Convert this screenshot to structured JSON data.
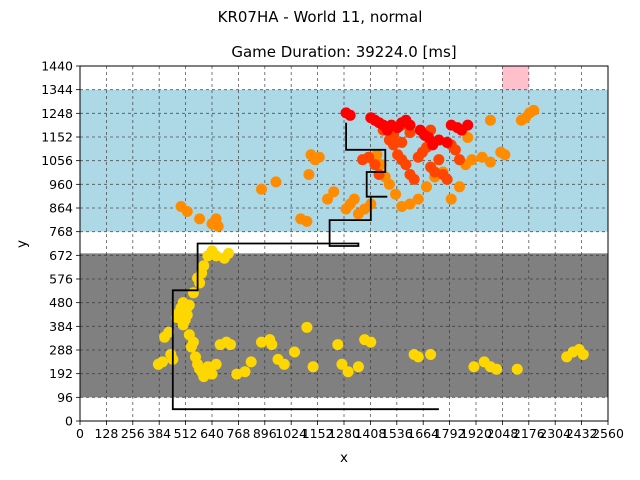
{
  "chart_data": {
    "type": "scatter",
    "suptitle": "KR07HA - World 11, normal",
    "title": "Game Duration: 39224.0 [ms]",
    "xlabel": "x",
    "ylabel": "y",
    "xlim": [
      0,
      2560
    ],
    "ylim": [
      0,
      1440
    ],
    "xticks": [
      0,
      128,
      256,
      384,
      512,
      640,
      768,
      896,
      1024,
      1152,
      1280,
      1408,
      1536,
      1664,
      1792,
      1920,
      2048,
      2176,
      2304,
      2432,
      2560
    ],
    "yticks": [
      0,
      96,
      192,
      288,
      384,
      480,
      576,
      672,
      768,
      864,
      960,
      1056,
      1152,
      1248,
      1344,
      1440
    ],
    "xtick_labels": [
      "0",
      "128",
      "256",
      "384",
      "512",
      "640",
      "768",
      "896",
      "1024",
      "1152",
      "1280",
      "1408",
      "1536",
      "1664",
      "1792",
      "1920",
      "2048",
      "2176",
      "2304",
      "2432",
      "2560"
    ],
    "ytick_labels": [
      "0",
      "96",
      "192",
      "288",
      "384",
      "480",
      "576",
      "672",
      "768",
      "864",
      "960",
      "1056",
      "1152",
      "1248",
      "1344",
      "1440"
    ],
    "grid": true,
    "regions": [
      {
        "name": "lower-zone",
        "color": "#808080",
        "x": [
          0,
          2560
        ],
        "y": [
          96,
          680
        ]
      },
      {
        "name": "upper-zone",
        "color": "#add8e6",
        "x": [
          0,
          2560
        ],
        "y": [
          768,
          1344
        ]
      },
      {
        "name": "goal-zone",
        "color": "#ffc0cb",
        "x": [
          2048,
          2176
        ],
        "y": [
          1344,
          1440
        ]
      }
    ],
    "path": [
      [
        1740,
        48
      ],
      [
        450,
        48
      ],
      [
        450,
        530
      ],
      [
        570,
        530
      ],
      [
        570,
        720
      ],
      [
        1350,
        720
      ],
      [
        1350,
        710
      ],
      [
        1210,
        710
      ],
      [
        1210,
        815
      ],
      [
        1410,
        815
      ],
      [
        1410,
        910
      ],
      [
        1490,
        910
      ],
      [
        1390,
        910
      ],
      [
        1390,
        1010
      ],
      [
        1480,
        1010
      ],
      [
        1480,
        1100
      ],
      [
        1290,
        1100
      ],
      [
        1290,
        1210
      ]
    ],
    "series": [
      {
        "color": "#ffd700",
        "points": [
          [
            380,
            230
          ],
          [
            400,
            240
          ],
          [
            410,
            340
          ],
          [
            430,
            360
          ],
          [
            440,
            270
          ],
          [
            450,
            250
          ],
          [
            470,
            420
          ],
          [
            480,
            440
          ],
          [
            490,
            460
          ],
          [
            500,
            390
          ],
          [
            510,
            410
          ],
          [
            520,
            430
          ],
          [
            530,
            350
          ],
          [
            540,
            300
          ],
          [
            550,
            320
          ],
          [
            560,
            260
          ],
          [
            570,
            230
          ],
          [
            580,
            210
          ],
          [
            590,
            200
          ],
          [
            600,
            180
          ],
          [
            620,
            220
          ],
          [
            640,
            190
          ],
          [
            660,
            230
          ],
          [
            680,
            310
          ],
          [
            710,
            320
          ],
          [
            730,
            310
          ],
          [
            760,
            190
          ],
          [
            800,
            200
          ],
          [
            830,
            240
          ],
          [
            880,
            320
          ],
          [
            920,
            330
          ],
          [
            930,
            310
          ],
          [
            960,
            250
          ],
          [
            990,
            230
          ],
          [
            1040,
            280
          ],
          [
            1100,
            380
          ],
          [
            1130,
            220
          ],
          [
            1250,
            310
          ],
          [
            1270,
            230
          ],
          [
            1300,
            200
          ],
          [
            1350,
            220
          ],
          [
            1380,
            330
          ],
          [
            1410,
            320
          ],
          [
            1620,
            270
          ],
          [
            1640,
            260
          ],
          [
            1700,
            270
          ],
          [
            1910,
            220
          ],
          [
            1960,
            240
          ],
          [
            1990,
            220
          ],
          [
            2020,
            210
          ],
          [
            2120,
            210
          ],
          [
            2360,
            260
          ],
          [
            2390,
            280
          ],
          [
            2420,
            290
          ],
          [
            2440,
            270
          ],
          [
            580,
            560
          ],
          [
            590,
            600
          ],
          [
            600,
            630
          ],
          [
            570,
            580
          ],
          [
            550,
            520
          ],
          [
            530,
            470
          ],
          [
            520,
            460
          ],
          [
            500,
            480
          ],
          [
            620,
            670
          ],
          [
            640,
            690
          ],
          [
            660,
            670
          ],
          [
            700,
            660
          ],
          [
            720,
            680
          ]
        ]
      },
      {
        "color": "#ff8c00",
        "points": [
          [
            490,
            870
          ],
          [
            520,
            850
          ],
          [
            580,
            820
          ],
          [
            640,
            800
          ],
          [
            660,
            820
          ],
          [
            670,
            790
          ],
          [
            880,
            940
          ],
          [
            950,
            970
          ],
          [
            1070,
            820
          ],
          [
            1100,
            810
          ],
          [
            1110,
            1000
          ],
          [
            1120,
            1080
          ],
          [
            1140,
            1060
          ],
          [
            1160,
            1070
          ],
          [
            1200,
            900
          ],
          [
            1230,
            930
          ],
          [
            1290,
            860
          ],
          [
            1310,
            880
          ],
          [
            1330,
            900
          ],
          [
            1350,
            840
          ],
          [
            1380,
            860
          ],
          [
            1410,
            880
          ],
          [
            1420,
            1060
          ],
          [
            1440,
            1080
          ],
          [
            1460,
            1040
          ],
          [
            1480,
            990
          ],
          [
            1500,
            960
          ],
          [
            1530,
            920
          ],
          [
            1560,
            870
          ],
          [
            1600,
            880
          ],
          [
            1640,
            900
          ],
          [
            1680,
            950
          ],
          [
            1720,
            990
          ],
          [
            1760,
            1010
          ],
          [
            1800,
            900
          ],
          [
            1840,
            950
          ],
          [
            1870,
            1040
          ],
          [
            1880,
            1150
          ],
          [
            1900,
            1060
          ],
          [
            1950,
            1070
          ],
          [
            1990,
            1050
          ],
          [
            2040,
            1090
          ],
          [
            2060,
            1080
          ],
          [
            2140,
            1220
          ],
          [
            2160,
            1230
          ],
          [
            2180,
            1250
          ],
          [
            2200,
            1260
          ],
          [
            1990,
            1220
          ]
        ]
      },
      {
        "color": "#ff4500",
        "points": [
          [
            1370,
            1060
          ],
          [
            1400,
            1070
          ],
          [
            1430,
            1040
          ],
          [
            1450,
            1000
          ],
          [
            1470,
            1180
          ],
          [
            1500,
            1140
          ],
          [
            1520,
            1120
          ],
          [
            1540,
            1080
          ],
          [
            1560,
            1060
          ],
          [
            1580,
            1040
          ],
          [
            1600,
            1000
          ],
          [
            1620,
            980
          ],
          [
            1640,
            1070
          ],
          [
            1660,
            1090
          ],
          [
            1680,
            1110
          ],
          [
            1700,
            1030
          ],
          [
            1720,
            1010
          ],
          [
            1740,
            1060
          ],
          [
            1760,
            1000
          ],
          [
            1780,
            980
          ],
          [
            1800,
            1120
          ],
          [
            1820,
            1100
          ],
          [
            1840,
            1060
          ],
          [
            1680,
            1160
          ],
          [
            1700,
            1180
          ],
          [
            1600,
            1170
          ],
          [
            1560,
            1130
          ],
          [
            1520,
            1160
          ],
          [
            1560,
            1200
          ]
        ]
      },
      {
        "color": "#ff0000",
        "points": [
          [
            1290,
            1250
          ],
          [
            1310,
            1240
          ],
          [
            1410,
            1230
          ],
          [
            1430,
            1220
          ],
          [
            1450,
            1210
          ],
          [
            1470,
            1200
          ],
          [
            1490,
            1180
          ],
          [
            1510,
            1200
          ],
          [
            1540,
            1190
          ],
          [
            1560,
            1210
          ],
          [
            1580,
            1220
          ],
          [
            1600,
            1200
          ],
          [
            1650,
            1180
          ],
          [
            1670,
            1160
          ],
          [
            1690,
            1150
          ],
          [
            1710,
            1120
          ],
          [
            1740,
            1140
          ],
          [
            1780,
            1130
          ],
          [
            1800,
            1200
          ],
          [
            1830,
            1190
          ],
          [
            1850,
            1180
          ],
          [
            1880,
            1200
          ]
        ]
      }
    ]
  }
}
